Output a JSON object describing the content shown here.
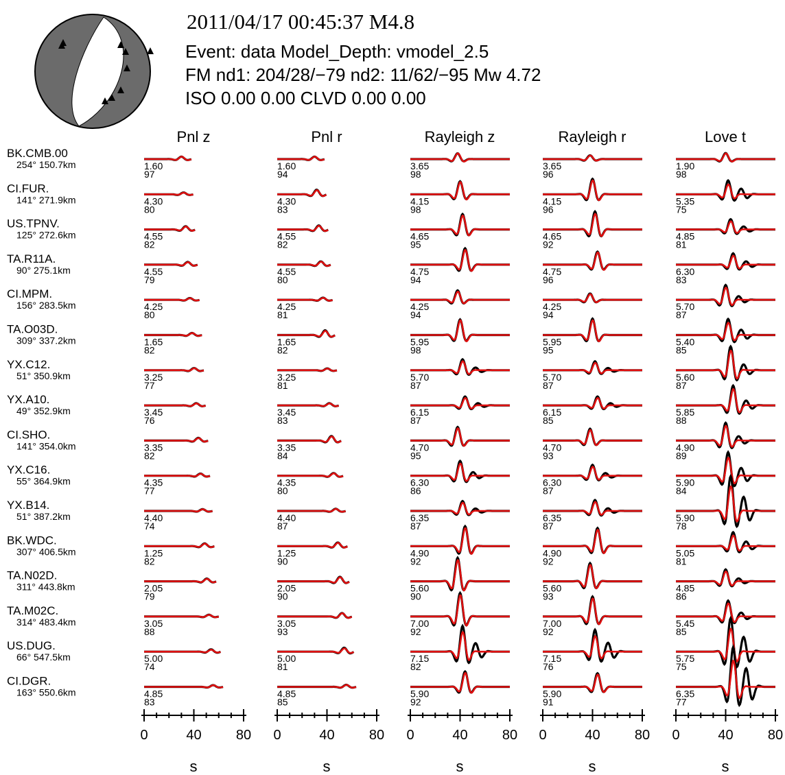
{
  "header": {
    "title": "2011/04/17 00:45:37 M4.8",
    "line1": "Event: data  Model_Depth: vmodel_2.5",
    "line2": "FM  nd1: 204/28/−79  nd2: 11/62/−95  Mw 4.72",
    "line3": "ISO 0.00 0.00 CLVD 0.00 0.00"
  },
  "chart_data": {
    "type": "line",
    "description_of_series": "Black = observed data, red = synthetic; each cell shows time shift (s) and cross-correlation (%)",
    "colors": {
      "data": "#000000",
      "synthetic": "#e01010",
      "beach_compressional": "#6b6b6b",
      "beach_dilatational": "#ffffff",
      "station": "#000000"
    },
    "components": [
      "Pnl z",
      "Pnl r",
      "Rayleigh z",
      "Rayleigh r",
      "Love t"
    ],
    "xlabel": "s",
    "xlim": [
      0,
      80
    ],
    "xticks": [
      "0",
      "40",
      "80"
    ],
    "stations": [
      {
        "name": "BK.CMB.00",
        "dist": "254° 150.7km",
        "shift": [
          "1.60",
          "1.60",
          "3.65",
          "3.65",
          "1.90"
        ],
        "cc": [
          "97",
          "94",
          "98",
          "96",
          "98"
        ],
        "amp": [
          0.15,
          0.15,
          0.35,
          0.22,
          0.35
        ],
        "misfit": [
          0,
          0,
          0,
          0.05,
          0.05
        ]
      },
      {
        "name": "CI.FUR.",
        "dist": "141° 271.9km",
        "shift": [
          "4.30",
          "4.30",
          "4.15",
          "4.15",
          "5.35"
        ],
        "cc": [
          "80",
          "83",
          "98",
          "96",
          "75"
        ],
        "amp": [
          0.1,
          0.25,
          0.75,
          0.85,
          0.6
        ],
        "misfit": [
          0.1,
          0.1,
          0.05,
          0.1,
          0.4
        ]
      },
      {
        "name": "US.TPNV.",
        "dist": "125° 272.6km",
        "shift": [
          "4.55",
          "4.55",
          "4.65",
          "4.65",
          "4.85"
        ],
        "cc": [
          "82",
          "82",
          "95",
          "92",
          "81"
        ],
        "amp": [
          0.18,
          0.22,
          0.85,
          0.95,
          0.5
        ],
        "misfit": [
          0.1,
          0.1,
          0.1,
          0.15,
          0.25
        ]
      },
      {
        "name": "TA.R11A.",
        "dist": "90° 275.1km",
        "shift": [
          "4.55",
          "4.55",
          "4.75",
          "4.75",
          "6.30"
        ],
        "cc": [
          "79",
          "80",
          "94",
          "96",
          "83"
        ],
        "amp": [
          0.15,
          0.18,
          0.9,
          0.75,
          0.55
        ],
        "misfit": [
          0.1,
          0.1,
          0.1,
          0.05,
          0.25
        ]
      },
      {
        "name": "CI.MPM.",
        "dist": "156° 283.5km",
        "shift": [
          "4.25",
          "4.25",
          "4.25",
          "4.25",
          "5.70"
        ],
        "cc": [
          "80",
          "81",
          "94",
          "94",
          "87"
        ],
        "amp": [
          0.1,
          0.12,
          0.5,
          0.35,
          0.75
        ],
        "misfit": [
          0.1,
          0.1,
          0.15,
          0.1,
          0.2
        ]
      },
      {
        "name": "TA.O03D.",
        "dist": "309° 337.2km",
        "shift": [
          "1.65",
          "1.65",
          "5.95",
          "5.95",
          "5.40"
        ],
        "cc": [
          "82",
          "82",
          "98",
          "95",
          "85"
        ],
        "amp": [
          0.12,
          0.25,
          0.9,
          0.9,
          0.75
        ],
        "misfit": [
          0.05,
          0.15,
          0.05,
          0.1,
          0.3
        ]
      },
      {
        "name": "YX.C12.",
        "dist": "51° 350.9km",
        "shift": [
          "3.25",
          "3.25",
          "5.70",
          "5.70",
          "5.60"
        ],
        "cc": [
          "77",
          "81",
          "87",
          "87",
          "87"
        ],
        "amp": [
          0.12,
          0.1,
          0.55,
          0.45,
          1.2
        ],
        "misfit": [
          0.1,
          0.1,
          0.2,
          0.2,
          0.2
        ]
      },
      {
        "name": "YX.A10.",
        "dist": "49° 352.9km",
        "shift": [
          "3.45",
          "3.45",
          "6.15",
          "6.15",
          "5.85"
        ],
        "cc": [
          "76",
          "83",
          "87",
          "85",
          "88"
        ],
        "amp": [
          0.12,
          0.12,
          0.45,
          0.45,
          1.0
        ],
        "misfit": [
          0.1,
          0.1,
          0.2,
          0.2,
          0.2
        ]
      },
      {
        "name": "CI.SHO.",
        "dist": "141° 354.0km",
        "shift": [
          "3.35",
          "3.35",
          "4.70",
          "4.70",
          "4.90"
        ],
        "cc": [
          "82",
          "84",
          "95",
          "93",
          "89"
        ],
        "amp": [
          0.15,
          0.25,
          0.75,
          0.65,
          0.9
        ],
        "misfit": [
          0.1,
          0.1,
          0.1,
          0.1,
          0.2
        ]
      },
      {
        "name": "YX.C16.",
        "dist": "55° 364.9km",
        "shift": [
          "4.35",
          "4.35",
          "6.30",
          "6.30",
          "5.90"
        ],
        "cc": [
          "77",
          "80",
          "86",
          "87",
          "84"
        ],
        "amp": [
          0.12,
          0.15,
          0.75,
          0.55,
          1.1
        ],
        "misfit": [
          0.1,
          0.1,
          0.2,
          0.2,
          0.3
        ]
      },
      {
        "name": "YX.B14.",
        "dist": "51° 387.2km",
        "shift": [
          "4.40",
          "4.40",
          "6.35",
          "6.35",
          "5.90"
        ],
        "cc": [
          "74",
          "87",
          "87",
          "87",
          "78"
        ],
        "amp": [
          0.1,
          0.12,
          0.5,
          0.55,
          1.5
        ],
        "misfit": [
          0.1,
          0.1,
          0.2,
          0.2,
          0.4
        ]
      },
      {
        "name": "BK.WDC.",
        "dist": "307° 406.5km",
        "shift": [
          "1.25",
          "1.25",
          "4.90",
          "4.90",
          "5.05"
        ],
        "cc": [
          "82",
          "90",
          "92",
          "92",
          "81"
        ],
        "amp": [
          0.15,
          0.2,
          1.1,
          1.0,
          0.65
        ],
        "misfit": [
          0.1,
          0.1,
          0.1,
          0.1,
          0.3
        ]
      },
      {
        "name": "TA.N02D.",
        "dist": "311° 443.8km",
        "shift": [
          "2.05",
          "2.05",
          "5.60",
          "5.60",
          "4.85"
        ],
        "cc": [
          "79",
          "90",
          "90",
          "93",
          "86"
        ],
        "amp": [
          0.15,
          0.25,
          1.3,
          1.0,
          0.6
        ],
        "misfit": [
          0.1,
          0.1,
          0.1,
          0.1,
          0.2
        ]
      },
      {
        "name": "TA.M02C.",
        "dist": "314° 483.4km",
        "shift": [
          "3.05",
          "3.05",
          "7.00",
          "7.00",
          "5.45"
        ],
        "cc": [
          "88",
          "93",
          "92",
          "92",
          "85"
        ],
        "amp": [
          0.1,
          0.2,
          1.3,
          1.1,
          0.8
        ],
        "misfit": [
          0.05,
          0.05,
          0.1,
          0.1,
          0.2
        ]
      },
      {
        "name": "US.DUG.",
        "dist": "66° 547.5km",
        "shift": [
          "5.00",
          "5.00",
          "7.15",
          "7.15",
          "5.75"
        ],
        "cc": [
          "74",
          "81",
          "82",
          "76",
          "75"
        ],
        "amp": [
          0.12,
          0.2,
          1.2,
          0.95,
          1.4
        ],
        "misfit": [
          0.2,
          0.2,
          0.3,
          0.4,
          0.45
        ]
      },
      {
        "name": "CI.DGR.",
        "dist": "163° 550.6km",
        "shift": [
          "4.85",
          "4.85",
          "5.90",
          "5.90",
          "6.35"
        ],
        "cc": [
          "83",
          "85",
          "92",
          "91",
          "77"
        ],
        "amp": [
          0.1,
          0.12,
          0.85,
          0.75,
          1.6
        ],
        "misfit": [
          0.05,
          0.05,
          0.1,
          0.1,
          0.5
        ]
      }
    ]
  }
}
